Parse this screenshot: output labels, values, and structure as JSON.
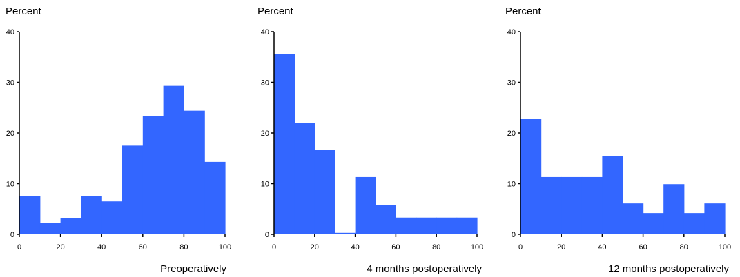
{
  "chart_data": [
    {
      "type": "bar",
      "ylabel": "Percent",
      "xlabel": "Preoperatively",
      "xlim": [
        0,
        100
      ],
      "ylim": [
        0,
        40
      ],
      "xticks": [
        0,
        20,
        40,
        60,
        80,
        100
      ],
      "yticks": [
        0,
        10,
        20,
        30,
        40
      ],
      "bin_width": 10,
      "bins": [
        0,
        10,
        20,
        30,
        40,
        50,
        60,
        70,
        80,
        90
      ],
      "values": [
        7.5,
        2.3,
        3.2,
        7.5,
        6.5,
        17.5,
        23.4,
        29.3,
        24.4,
        14.3
      ],
      "color": "#3366ff"
    },
    {
      "type": "bar",
      "ylabel": "Percent",
      "xlabel": "4 months postoperatively",
      "xlim": [
        0,
        100
      ],
      "ylim": [
        0,
        40
      ],
      "xticks": [
        0,
        20,
        40,
        60,
        80,
        100
      ],
      "yticks": [
        0,
        10,
        20,
        30,
        40
      ],
      "bin_width": 10,
      "bins": [
        0,
        10,
        20,
        30,
        40,
        50,
        60,
        70,
        80,
        90
      ],
      "values": [
        35.6,
        22.0,
        16.6,
        0.3,
        11.3,
        5.8,
        3.3,
        3.3,
        3.3,
        3.3
      ],
      "color": "#3366ff"
    },
    {
      "type": "bar",
      "ylabel": "Percent",
      "xlabel": "12 months postoperatively",
      "xlim": [
        0,
        100
      ],
      "ylim": [
        0,
        40
      ],
      "xticks": [
        0,
        20,
        40,
        60,
        80,
        100
      ],
      "yticks": [
        0,
        10,
        20,
        30,
        40
      ],
      "bin_width": 10,
      "bins": [
        0,
        10,
        20,
        30,
        40,
        50,
        60,
        70,
        80,
        90
      ],
      "values": [
        22.8,
        11.3,
        11.3,
        11.3,
        15.4,
        6.1,
        4.2,
        9.9,
        4.2,
        6.1
      ],
      "color": "#3366ff"
    }
  ]
}
